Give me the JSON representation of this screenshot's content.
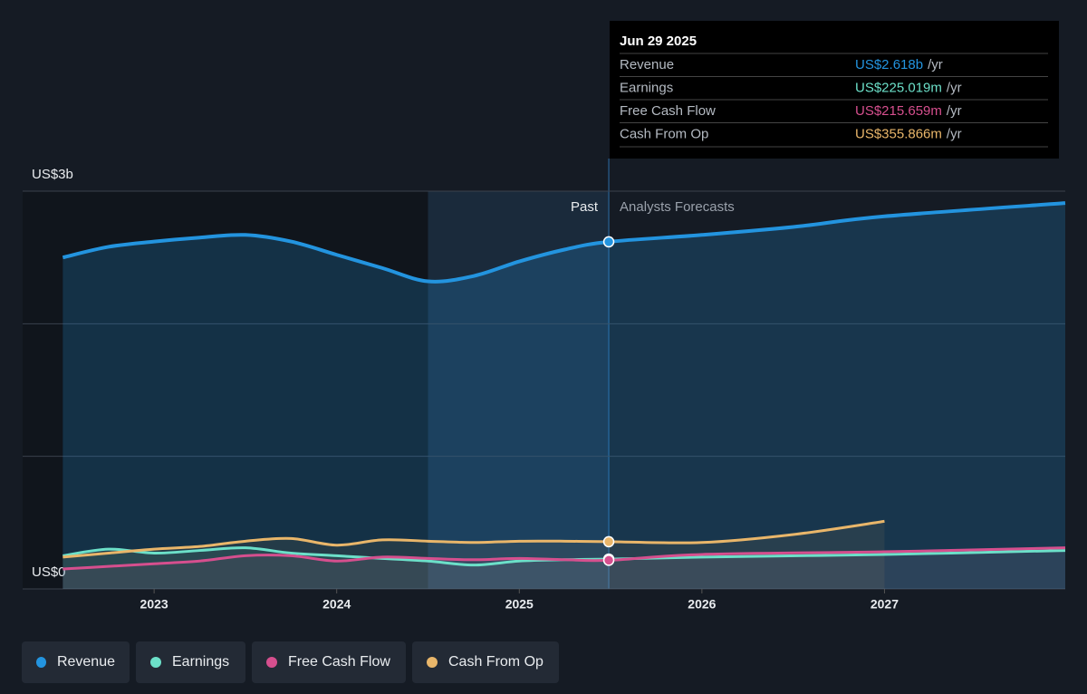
{
  "chart_data": {
    "type": "line",
    "xlim": [
      2022.28,
      2027.99
    ],
    "xticks": [
      2023,
      2024,
      2025,
      2026,
      2027
    ],
    "ylim": [
      0,
      3
    ],
    "yticks": [
      {
        "value": 0,
        "label": "US$0"
      },
      {
        "value": 1,
        "label": null
      },
      {
        "value": 2,
        "label": null
      },
      {
        "value": 3,
        "label": "US$3b"
      }
    ],
    "grid": true,
    "highlight_x": [
      2024.5,
      2025.49
    ],
    "forecast_start": 2025.49,
    "annotations": [
      "Past",
      "Analysts Forecasts"
    ],
    "series": [
      {
        "name": "Revenue",
        "color": "#2394df",
        "x": [
          2022.5,
          2022.75,
          2023,
          2023.25,
          2023.5,
          2023.75,
          2024,
          2024.25,
          2024.5,
          2024.75,
          2025,
          2025.25,
          2025.49,
          2026,
          2026.5,
          2027,
          2027.99
        ],
        "values": [
          2.5,
          2.58,
          2.62,
          2.65,
          2.67,
          2.62,
          2.52,
          2.42,
          2.32,
          2.36,
          2.47,
          2.56,
          2.618,
          2.67,
          2.73,
          2.81,
          2.91
        ]
      },
      {
        "name": "Earnings",
        "color": "#6ce0c9",
        "x": [
          2022.5,
          2022.75,
          2023,
          2023.25,
          2023.5,
          2023.75,
          2024,
          2024.25,
          2024.5,
          2024.75,
          2025,
          2025.25,
          2025.49,
          2026,
          2027,
          2027.99
        ],
        "values": [
          0.25,
          0.3,
          0.27,
          0.29,
          0.31,
          0.27,
          0.25,
          0.23,
          0.21,
          0.18,
          0.21,
          0.22,
          0.225,
          0.24,
          0.26,
          0.29
        ]
      },
      {
        "name": "Free Cash Flow",
        "color": "#d64f8e",
        "x": [
          2022.5,
          2022.75,
          2023,
          2023.25,
          2023.5,
          2023.75,
          2024,
          2024.25,
          2024.5,
          2024.75,
          2025,
          2025.25,
          2025.49,
          2026,
          2027,
          2027.99
        ],
        "values": [
          0.15,
          0.17,
          0.19,
          0.21,
          0.25,
          0.25,
          0.21,
          0.24,
          0.23,
          0.22,
          0.23,
          0.22,
          0.2157,
          0.26,
          0.28,
          0.31
        ]
      },
      {
        "name": "Cash From Op",
        "color": "#e9b66a",
        "x": [
          2022.5,
          2022.75,
          2023,
          2023.25,
          2023.5,
          2023.75,
          2024,
          2024.25,
          2024.5,
          2024.75,
          2025,
          2025.25,
          2025.49,
          2026,
          2026.5,
          2027
        ],
        "values": [
          0.24,
          0.27,
          0.3,
          0.32,
          0.36,
          0.38,
          0.33,
          0.37,
          0.36,
          0.35,
          0.36,
          0.36,
          0.356,
          0.35,
          0.41,
          0.51
        ]
      }
    ],
    "tooltip": {
      "date": "Jun 29 2025",
      "rows": [
        {
          "name": "Revenue",
          "value": 2.618,
          "value_label": "US$2.618b",
          "unit": "/yr"
        },
        {
          "name": "Earnings",
          "value": 0.225019,
          "value_label": "US$225.019m",
          "unit": "/yr"
        },
        {
          "name": "Free Cash Flow",
          "value": 0.215659,
          "value_label": "US$215.659m",
          "unit": "/yr"
        },
        {
          "name": "Cash From Op",
          "value": 0.355866,
          "value_label": "US$355.866m",
          "unit": "/yr"
        }
      ]
    }
  }
}
